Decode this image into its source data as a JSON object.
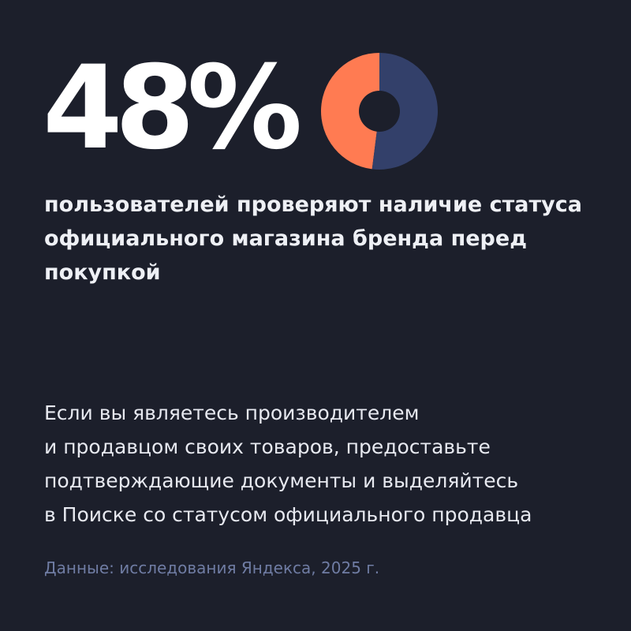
{
  "colors": {
    "background": "#1c1f2b",
    "accent": "#ff7b52",
    "remainder": "#33406a",
    "source_text": "#6f7ca3"
  },
  "headline": {
    "value_text": "48%"
  },
  "chart_data": {
    "type": "pie",
    "style": "donut",
    "values": [
      48,
      52
    ],
    "colors": [
      "#ff7b52",
      "#33406a"
    ]
  },
  "subtitle": {
    "lines": [
      "пользователей проверяют наличие статуса",
      "официального магазина бренда перед",
      "покупкой"
    ]
  },
  "body": {
    "lines": [
      "Если вы являетесь производителем",
      "и продавцом своих товаров, предоставьте",
      "подтверждающие документы и выделяйтесь",
      "в Поиске со статусом официального продавца"
    ]
  },
  "source": {
    "text": "Данные: исследования Яндекса, 2025 г."
  }
}
